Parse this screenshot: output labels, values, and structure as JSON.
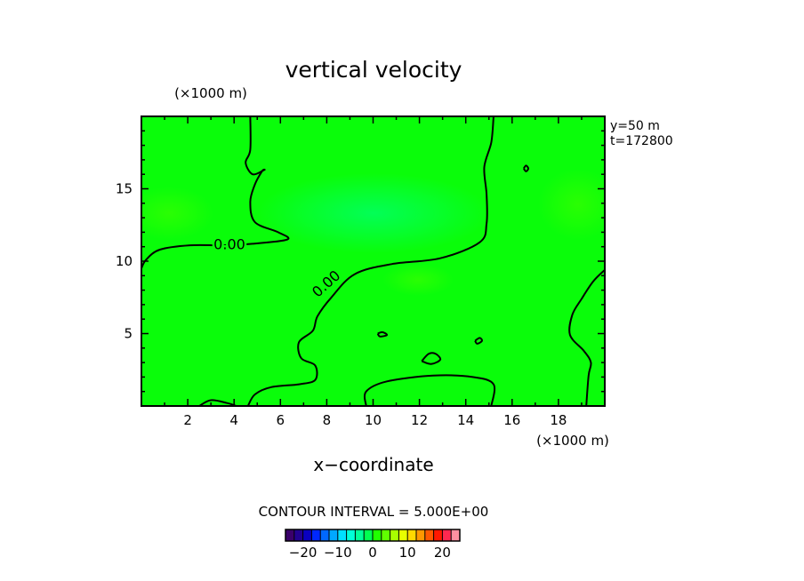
{
  "chart_data": {
    "type": "heatmap",
    "title": "vertical velocity",
    "xlabel": "x−coordinate",
    "x_unit": "(×1000 m)",
    "y_unit": "(×1000 m)",
    "xlim": [
      0,
      20
    ],
    "ylim": [
      0,
      20
    ],
    "x_ticks": [
      2,
      4,
      6,
      8,
      10,
      12,
      14,
      16,
      18
    ],
    "y_ticks": [
      5,
      10,
      15
    ],
    "annotation_y": "y=50  m",
    "annotation_t": "t=172800",
    "contour_interval_text": "CONTOUR INTERVAL = 5.000E+00",
    "contour_labels": [
      {
        "text": "0.00",
        "x": 3.8,
        "y": 11.1,
        "angle": 0
      },
      {
        "text": "0.00",
        "x": 8.0,
        "y": 8.4,
        "angle": -42
      }
    ],
    "field_color": "#0afd0a",
    "colorbar": {
      "ticks": [
        "−20",
        "−10",
        "0",
        "10",
        "20"
      ],
      "tick_values": [
        -20,
        -10,
        0,
        10,
        20
      ],
      "range": [
        -25,
        25
      ],
      "colors": [
        "#3a006a",
        "#220090",
        "#0a00c0",
        "#0028ff",
        "#0068ff",
        "#00a8ff",
        "#00e0ff",
        "#00ffd8",
        "#00ff98",
        "#00ff50",
        "#20ff00",
        "#60ff00",
        "#a8ff00",
        "#e8ff00",
        "#ffd800",
        "#ff9800",
        "#ff5800",
        "#ff1800",
        "#ff2850",
        "#ff90a0"
      ]
    },
    "contours": [
      [
        [
          4.6,
          0
        ],
        [
          4.9,
          0.8
        ],
        [
          5.6,
          1.3
        ],
        [
          6.8,
          1.5
        ],
        [
          7.5,
          1.8
        ],
        [
          7.5,
          2.8
        ],
        [
          6.9,
          3.3
        ],
        [
          6.8,
          4.4
        ],
        [
          7.4,
          5.2
        ],
        [
          7.6,
          6.2
        ],
        [
          8.2,
          7.5
        ],
        [
          9.2,
          9.1
        ],
        [
          10.8,
          9.8
        ],
        [
          12.9,
          10.2
        ],
        [
          14.6,
          11.3
        ],
        [
          14.9,
          12.6
        ],
        [
          14.9,
          14.6
        ],
        [
          14.8,
          16.5
        ],
        [
          15.1,
          18.2
        ],
        [
          15.2,
          20
        ]
      ],
      [
        [
          0,
          9.5
        ],
        [
          0.2,
          10.1
        ],
        [
          0.8,
          10.8
        ],
        [
          2.1,
          11.1
        ],
        [
          3.5,
          11.1
        ],
        [
          4.8,
          11.2
        ],
        [
          6.3,
          11.5
        ],
        [
          5.9,
          12.0
        ],
        [
          4.9,
          12.7
        ],
        [
          4.7,
          14.1
        ],
        [
          4.9,
          15.3
        ],
        [
          5.2,
          16.2
        ],
        [
          5.3,
          16.3
        ],
        [
          4.8,
          16.0
        ],
        [
          4.5,
          16.8
        ],
        [
          4.7,
          17.7
        ],
        [
          4.7,
          20
        ]
      ],
      [
        [
          9.7,
          0
        ],
        [
          9.7,
          1.0
        ],
        [
          10.6,
          1.7
        ],
        [
          12.6,
          2.1
        ],
        [
          14.3,
          2.0
        ],
        [
          15.2,
          1.5
        ],
        [
          15.1,
          0
        ]
      ],
      [
        [
          2.5,
          0
        ],
        [
          3.0,
          0.4
        ],
        [
          3.7,
          0.2
        ],
        [
          4.1,
          0
        ]
      ],
      [
        [
          20,
          9.4
        ],
        [
          19.5,
          8.6
        ],
        [
          19.0,
          7.4
        ],
        [
          18.6,
          6.3
        ],
        [
          18.5,
          4.9
        ],
        [
          19.1,
          3.8
        ],
        [
          19.4,
          3.0
        ],
        [
          19.3,
          2.1
        ],
        [
          19.2,
          0
        ]
      ],
      [
        [
          12.1,
          3.1
        ],
        [
          12.4,
          3.6
        ],
        [
          12.7,
          3.6
        ],
        [
          12.9,
          3.2
        ],
        [
          12.5,
          2.9
        ],
        [
          12.1,
          3.1
        ]
      ],
      [
        [
          14.4,
          4.5
        ],
        [
          14.6,
          4.7
        ],
        [
          14.7,
          4.5
        ],
        [
          14.5,
          4.3
        ],
        [
          14.4,
          4.5
        ]
      ],
      [
        [
          10.2,
          5.0
        ],
        [
          10.4,
          5.1
        ],
        [
          10.6,
          4.9
        ],
        [
          10.3,
          4.8
        ],
        [
          10.2,
          5.0
        ]
      ],
      [
        [
          16.5,
          16.4
        ],
        [
          16.6,
          16.6
        ],
        [
          16.7,
          16.4
        ],
        [
          16.6,
          16.2
        ],
        [
          16.5,
          16.4
        ]
      ]
    ]
  }
}
